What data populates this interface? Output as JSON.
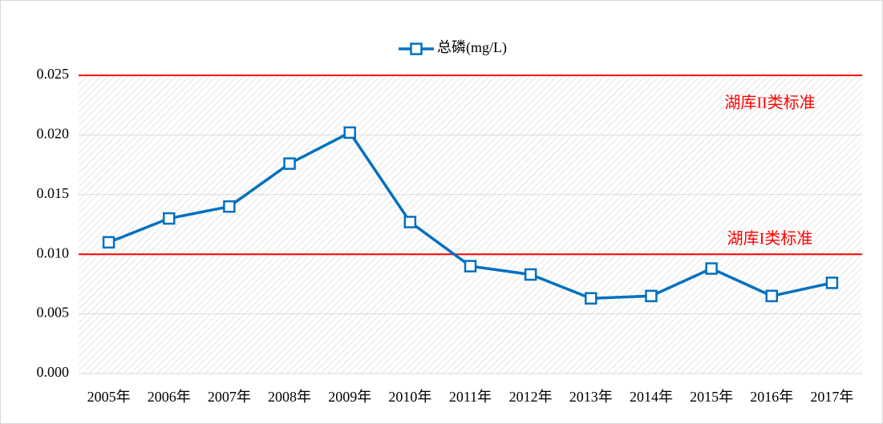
{
  "chart_data": {
    "type": "line",
    "categories": [
      "2005年",
      "2006年",
      "2007年",
      "2008年",
      "2009年",
      "2010年",
      "2011年",
      "2012年",
      "2013年",
      "2014年",
      "2015年",
      "2016年",
      "2017年"
    ],
    "series": [
      {
        "name": "总磷(mg/L)",
        "color": "#0070c0",
        "values": [
          0.011,
          0.013,
          0.014,
          0.0176,
          0.0202,
          0.0127,
          0.009,
          0.0083,
          0.0063,
          0.0065,
          0.0088,
          0.0065,
          0.0076
        ]
      }
    ],
    "ylim": [
      0,
      0.025
    ],
    "yticks": [
      {
        "value": 0,
        "label": "0.000"
      },
      0.005,
      {
        "value": 0.01,
        "label": "0.010"
      },
      0.015,
      {
        "value": 0.02,
        "label": "0.020"
      },
      0.025
    ],
    "grid": true,
    "legend": "top",
    "reference_lines": [
      {
        "value": 0.025,
        "label": "湖库II类标准",
        "color": "#ff0000"
      },
      {
        "value": 0.01,
        "label": "湖库I类标准",
        "color": "#ff0000"
      }
    ]
  }
}
